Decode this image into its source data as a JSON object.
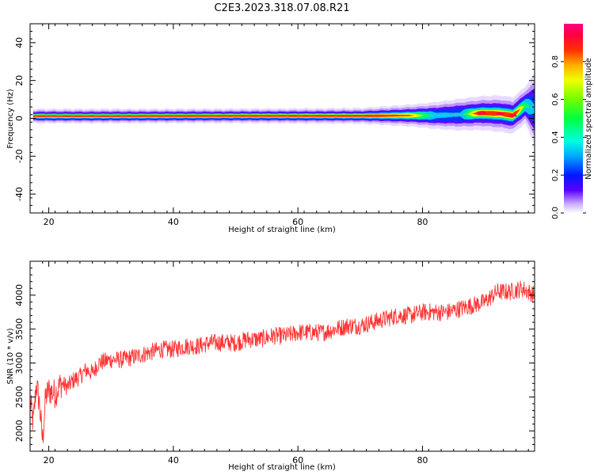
{
  "title": "C2E3.2023.318.07.08.R21",
  "chart_data": [
    {
      "type": "heatmap",
      "name": "spectrogram",
      "xlabel": "Height of straight line (km)",
      "ylabel": "Frequency (Hz)",
      "xlim": [
        17,
        98
      ],
      "ylim": [
        -50,
        50
      ],
      "xticks": [
        20,
        40,
        60,
        80
      ],
      "yticks": [
        -40,
        -20,
        0,
        20,
        40
      ],
      "colorbar": {
        "label": "Normalized spectral amplitude",
        "range": [
          0.0,
          1.0
        ],
        "ticks": [
          0.0,
          0.2,
          0.4,
          0.6,
          0.8
        ],
        "tick_labels": [
          "0.0",
          "0.2",
          "0.4",
          "0.6",
          "0.8"
        ]
      },
      "ridge": [
        {
          "x": 17.5,
          "freq": 1.2,
          "halfwidth": 1.2,
          "amp": 1.0
        },
        {
          "x": 30,
          "freq": 1.2,
          "halfwidth": 1.2,
          "amp": 1.0
        },
        {
          "x": 50,
          "freq": 1.3,
          "halfwidth": 1.2,
          "amp": 1.0
        },
        {
          "x": 70,
          "freq": 1.3,
          "halfwidth": 1.3,
          "amp": 1.0
        },
        {
          "x": 78,
          "freq": 1.5,
          "halfwidth": 1.8,
          "amp": 0.85
        },
        {
          "x": 82,
          "freq": 1.5,
          "halfwidth": 2.2,
          "amp": 0.55
        },
        {
          "x": 86,
          "freq": 2.0,
          "halfwidth": 2.6,
          "amp": 0.5
        },
        {
          "x": 89.5,
          "freq": 2.8,
          "halfwidth": 2.8,
          "amp": 1.0
        },
        {
          "x": 92.5,
          "freq": 2.5,
          "halfwidth": 3.0,
          "amp": 0.9
        },
        {
          "x": 94.5,
          "freq": 1.5,
          "halfwidth": 3.0,
          "amp": 1.0
        },
        {
          "x": 96.5,
          "freq": 7.0,
          "halfwidth": 3.0,
          "amp": 0.65
        },
        {
          "x": 98,
          "freq": 5.0,
          "halfwidth": 6.0,
          "amp": 0.5
        }
      ]
    },
    {
      "type": "line",
      "name": "snr",
      "xlabel": "Height of straight line (km)",
      "ylabel": "SNR (10 * v/v)",
      "xlim": [
        17,
        98
      ],
      "ylim": [
        1700,
        4500
      ],
      "xticks": [
        20,
        40,
        60,
        80
      ],
      "yticks": [
        2000,
        2500,
        3000,
        3500,
        4000
      ],
      "color": "#ff3333",
      "series": [
        {
          "x": [
            17,
            17.5,
            18,
            18.5,
            19,
            19.5,
            20,
            21,
            22,
            23,
            24,
            25,
            26,
            27,
            28,
            30,
            32,
            34,
            36,
            38,
            40,
            42,
            44,
            46,
            48,
            50,
            52,
            54,
            56,
            58,
            60,
            62,
            64,
            66,
            68,
            70,
            72,
            74,
            76,
            78,
            80,
            82,
            84,
            86,
            88,
            90,
            92,
            94,
            96,
            98
          ],
          "y": [
            2450,
            2100,
            2700,
            2400,
            1850,
            2500,
            2600,
            2550,
            2700,
            2650,
            2750,
            2800,
            2900,
            2850,
            3000,
            3050,
            3050,
            3100,
            3150,
            3200,
            3200,
            3250,
            3250,
            3300,
            3300,
            3300,
            3350,
            3350,
            3400,
            3400,
            3450,
            3450,
            3450,
            3500,
            3550,
            3550,
            3600,
            3650,
            3700,
            3700,
            3750,
            3750,
            3750,
            3800,
            3850,
            3900,
            4050,
            4050,
            4100,
            4000
          ]
        }
      ]
    }
  ]
}
